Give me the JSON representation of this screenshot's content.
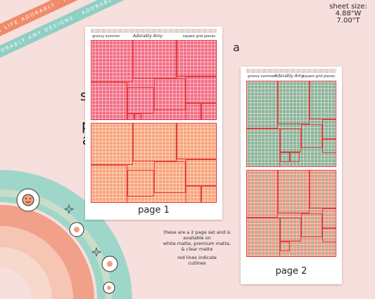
{
  "ribbons": {
    "top": "PLAN LIFE ADORABLY · PLAN LIFE ADORABLY · PLAN LIFE ADORABLY",
    "bottom": "ADORABLY AMY DESIGNS · ADORABLY AMY DESIGNS · ADORABLY"
  },
  "sheet_size": {
    "line1": "sheet size:",
    "line2": "4.88\"W",
    "line3": "7.00\"T"
  },
  "variant_letter": "a",
  "title": {
    "line1": "square grid",
    "line2": "pieces",
    "line3": "addon"
  },
  "page1": {
    "header_left": "groovy summer",
    "header_center": "Adorably Amy",
    "header_right": "square grid pieces",
    "label": "page 1"
  },
  "page2": {
    "header_left": "groovy summer",
    "header_center": "Adorably Amy",
    "header_right": "square grid pieces",
    "label": "page 2"
  },
  "notes": {
    "line1": "these are a 2 page set and is",
    "line2": "available on",
    "line3": "white matte, premium matte,",
    "line4": "& clear matte",
    "line5": "red lines indicate",
    "line6": "cutlines"
  },
  "colors": {
    "background": "#f6dfdc",
    "pink_grid": "#f27a8a",
    "peach_grid": "#f5a27a",
    "green_grid": "#8fb69a",
    "cutline": "#e33b3b"
  }
}
